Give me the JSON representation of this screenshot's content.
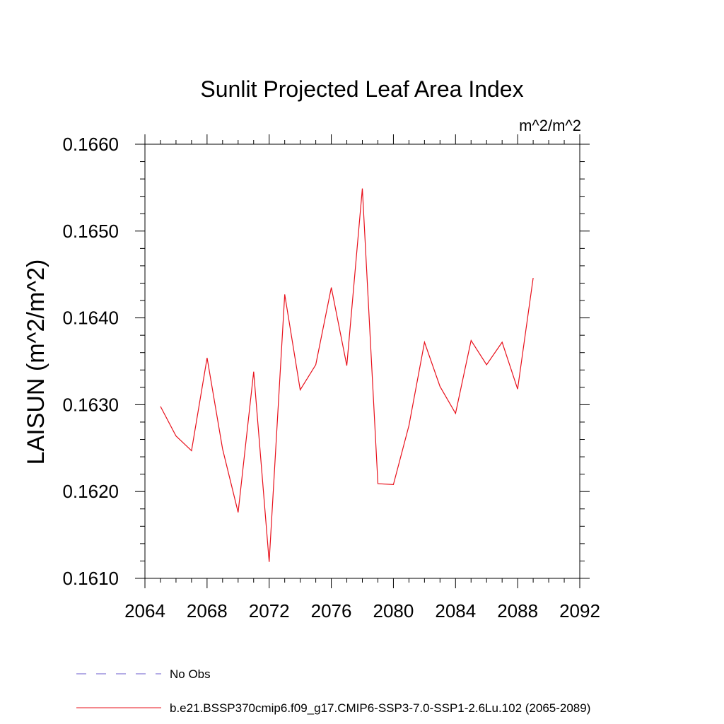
{
  "chart_data": {
    "type": "line",
    "title": "Sunlit Projected Leaf Area Index",
    "units_label": "m^2/m^2",
    "xlabel": "",
    "ylabel": "LAISUN  (m^2/m^2)",
    "xlim": [
      2064,
      2092
    ],
    "ylim": [
      0.161,
      0.166
    ],
    "x_ticks": [
      "2064",
      "2068",
      "2072",
      "2076",
      "2080",
      "2084",
      "2088",
      "2092"
    ],
    "y_ticks": [
      "0.1610",
      "0.1620",
      "0.1630",
      "0.1640",
      "0.1650",
      "0.1660"
    ],
    "grid": false,
    "legend_placement": "bottom",
    "series": [
      {
        "name": "b.e21.BSSP370cmip6.f09_g17.CMIP6-SSP3-7.0-SSP1-2.6Lu.102 (2065-2089)",
        "color": "#e8101b",
        "style": "solid",
        "x": [
          2065,
          2066,
          2067,
          2068,
          2069,
          2070,
          2071,
          2072,
          2073,
          2074,
          2075,
          2076,
          2077,
          2078,
          2079,
          2080,
          2081,
          2082,
          2083,
          2084,
          2085,
          2086,
          2087,
          2088,
          2089
        ],
        "values": [
          0.16298,
          0.16264,
          0.16247,
          0.16354,
          0.16249,
          0.16176,
          0.16338,
          0.16119,
          0.16427,
          0.16317,
          0.16346,
          0.16435,
          0.16345,
          0.16549,
          0.16209,
          0.16208,
          0.16276,
          0.16372,
          0.16321,
          0.1629,
          0.16374,
          0.16346,
          0.16372,
          0.16318,
          0.16446
        ]
      }
    ],
    "legend": [
      {
        "label": "No Obs",
        "color": "#6a5acd",
        "style": "dashed"
      },
      {
        "label": "b.e21.BSSP370cmip6.f09_g17.CMIP6-SSP3-7.0-SSP1-2.6Lu.102 (2065-2089)",
        "color": "#e8101b",
        "style": "solid"
      }
    ]
  }
}
